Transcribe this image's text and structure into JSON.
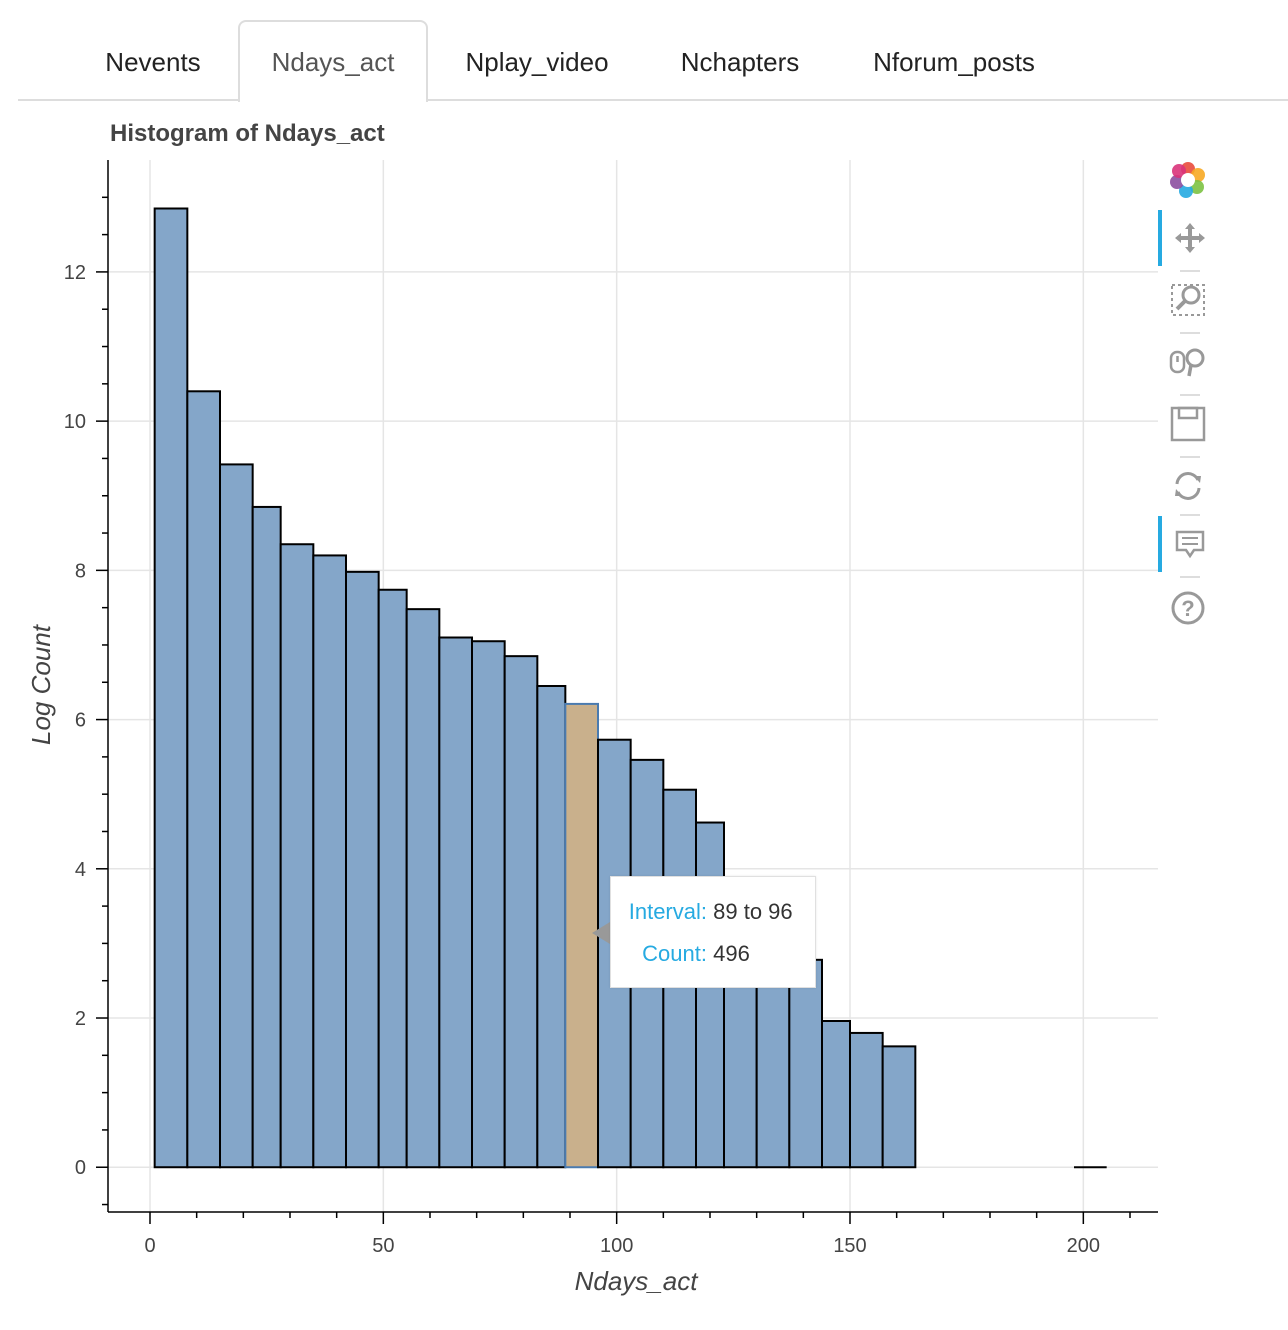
{
  "tabs": [
    {
      "label": "Nevents",
      "active": false
    },
    {
      "label": "Ndays_act",
      "active": true
    },
    {
      "label": "Nplay_video",
      "active": false
    },
    {
      "label": "Nchapters",
      "active": false
    },
    {
      "label": "Nforum_posts",
      "active": false
    }
  ],
  "tooltip": {
    "interval_label": "Interval:",
    "interval_value": "89 to 96",
    "count_label": "Count:",
    "count_value": "496"
  },
  "toolbar": {
    "tools": [
      {
        "name": "bokeh-logo-icon",
        "active": false
      },
      {
        "name": "pan-icon",
        "active": true
      },
      {
        "name": "box-zoom-icon",
        "active": false
      },
      {
        "name": "wheel-zoom-icon",
        "active": false
      },
      {
        "name": "save-icon",
        "active": false
      },
      {
        "name": "reset-icon",
        "active": false
      },
      {
        "name": "hover-icon",
        "active": true
      },
      {
        "name": "help-icon",
        "active": false
      }
    ]
  },
  "colors": {
    "bar_fill": "#84a6c9",
    "bar_stroke": "#000000",
    "highlight_fill": "#c9b08c",
    "highlight_stroke": "#4a7bb0",
    "grid": "#e5e5e5",
    "accent": "#26aae1"
  },
  "chart_data": {
    "type": "bar",
    "title": "Histogram of Ndays_act",
    "xlabel": "Ndays_act",
    "ylabel": "Log Count",
    "xlim": [
      -9,
      216
    ],
    "ylim": [
      -0.6,
      13.5
    ],
    "x_ticks": [
      0,
      50,
      100,
      150,
      200
    ],
    "y_ticks": [
      0,
      2,
      4,
      6,
      8,
      10,
      12
    ],
    "grid": true,
    "bins": [
      {
        "left": 1,
        "right": 8,
        "value": 12.85
      },
      {
        "left": 8,
        "right": 15,
        "value": 10.4
      },
      {
        "left": 15,
        "right": 22,
        "value": 9.42
      },
      {
        "left": 22,
        "right": 28,
        "value": 8.85
      },
      {
        "left": 28,
        "right": 35,
        "value": 8.35
      },
      {
        "left": 35,
        "right": 42,
        "value": 8.2
      },
      {
        "left": 42,
        "right": 49,
        "value": 7.98
      },
      {
        "left": 49,
        "right": 55,
        "value": 7.74
      },
      {
        "left": 55,
        "right": 62,
        "value": 7.48
      },
      {
        "left": 62,
        "right": 69,
        "value": 7.1
      },
      {
        "left": 69,
        "right": 76,
        "value": 7.05
      },
      {
        "left": 76,
        "right": 83,
        "value": 6.85
      },
      {
        "left": 83,
        "right": 89,
        "value": 6.45
      },
      {
        "left": 89,
        "right": 96,
        "value": 6.21,
        "highlighted": true
      },
      {
        "left": 96,
        "right": 103,
        "value": 5.73
      },
      {
        "left": 103,
        "right": 110,
        "value": 5.46
      },
      {
        "left": 110,
        "right": 117,
        "value": 5.06
      },
      {
        "left": 117,
        "right": 123,
        "value": 4.62
      },
      {
        "left": 123,
        "right": 130,
        "value": 3.8
      },
      {
        "left": 130,
        "right": 137,
        "value": 3.1
      },
      {
        "left": 137,
        "right": 144,
        "value": 2.78
      },
      {
        "left": 144,
        "right": 150,
        "value": 1.96
      },
      {
        "left": 150,
        "right": 157,
        "value": 1.8
      },
      {
        "left": 157,
        "right": 164,
        "value": 1.62
      },
      {
        "left": 198,
        "right": 205,
        "value": 0
      }
    ]
  }
}
